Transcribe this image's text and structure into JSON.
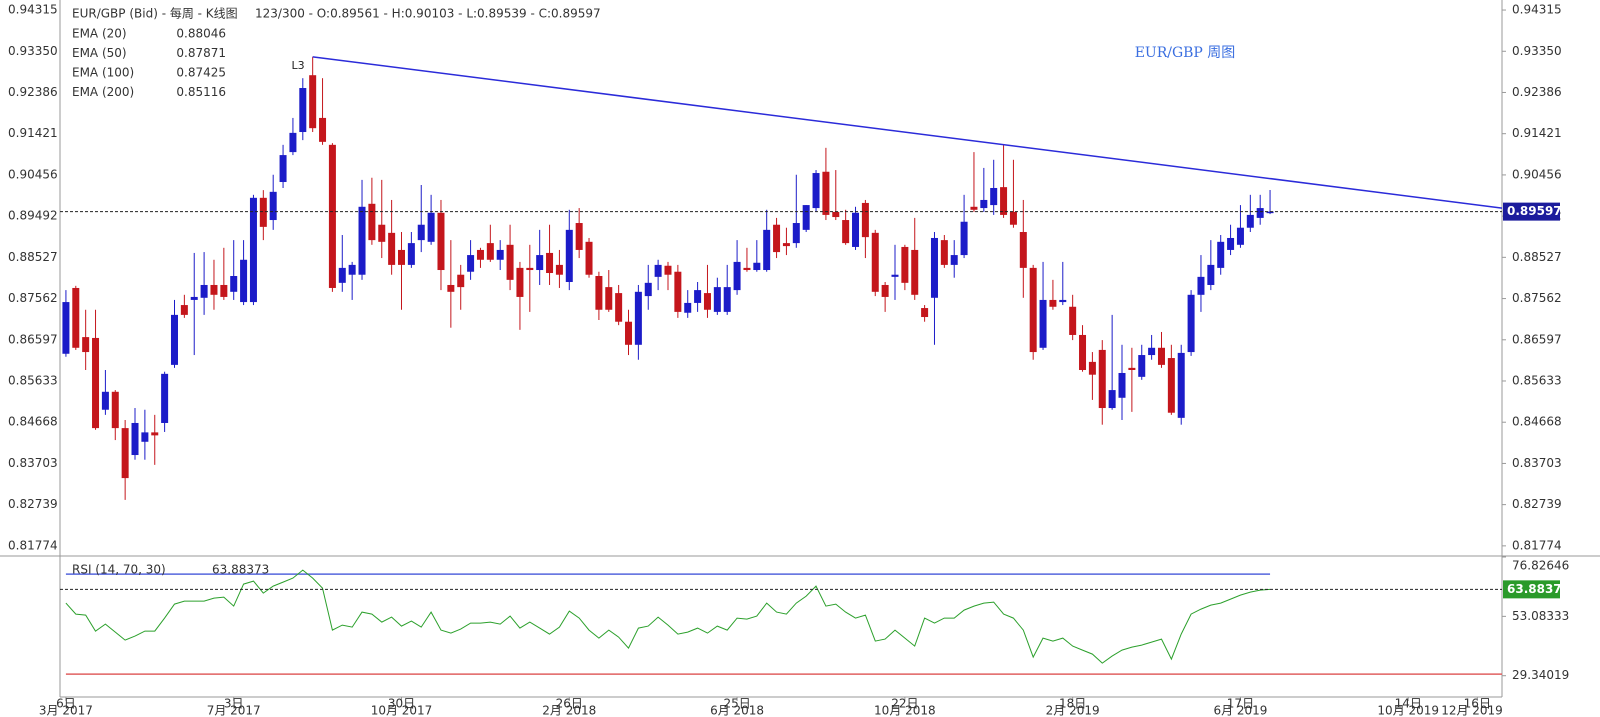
{
  "chart_data": [
    {
      "type": "candlestick",
      "title": "EUR/GBP (Bid) - 每周 - K线图",
      "status": "123/300 - O:0.89561 - H:0.90103 - L:0.89539 - C:0.89597",
      "annotation": "EUR/GBP 周图",
      "annotation_color": "#3b6fe0",
      "indicators": [
        {
          "name": "EMA (20)",
          "value": 0.88046
        },
        {
          "name": "EMA (50)",
          "value": 0.87871
        },
        {
          "name": "EMA (100)",
          "value": 0.87425
        },
        {
          "name": "EMA (200)",
          "value": 0.85116
        }
      ],
      "up_color": "#1c1cc8",
      "down_color": "#c4161c",
      "ylim": [
        0.8156,
        0.9455
      ],
      "yticks": [
        0.94315,
        {
          "value": 0.9335,
          "label": "0.93350"
        },
        0.92386,
        0.91421,
        0.90456,
        0.89492,
        0.88527,
        0.87562,
        0.86597,
        0.85633,
        0.84668,
        0.83703,
        0.82739,
        0.81774
      ],
      "xlim": [
        -0.6,
        145.5
      ],
      "xticks": [
        {
          "value": 0,
          "label": "6日",
          "period": "3月 2017"
        },
        {
          "value": 17,
          "label": "3日",
          "period": "7月 2017"
        },
        {
          "value": 34,
          "label": "30日",
          "period": "10月 2017"
        },
        {
          "value": 51,
          "label": "26日",
          "period": "2月 2018"
        },
        {
          "value": 68,
          "label": "25日",
          "period": "6月 2018"
        },
        {
          "value": 85,
          "label": "22日",
          "period": "10月 2018"
        },
        {
          "value": 102,
          "label": "18日",
          "period": "2月 2019"
        },
        {
          "value": 119,
          "label": "17日",
          "period": "6月 2019"
        },
        {
          "value": 136,
          "label": "14日",
          "period": "10月 2019"
        },
        {
          "value": 143,
          "label": "16日",
          "period": "12月 2019"
        }
      ],
      "trendline": {
        "label": "L3",
        "color": "#2b2bd9",
        "points": [
          [
            25,
            0.9322
          ],
          [
            145.5,
            0.8968
          ]
        ]
      },
      "ohlc": [
        [
          0.8627,
          0.8776,
          0.862,
          0.8748
        ],
        [
          0.8781,
          0.8786,
          0.8636,
          0.8641
        ],
        [
          0.8666,
          0.873,
          0.8589,
          0.8631
        ],
        [
          0.8664,
          0.873,
          0.8449,
          0.8453
        ],
        [
          0.8496,
          0.8589,
          0.8484,
          0.8538
        ],
        [
          0.8538,
          0.8542,
          0.8425,
          0.8453
        ],
        [
          0.8453,
          0.8472,
          0.8285,
          0.8336
        ],
        [
          0.839,
          0.85,
          0.8379,
          0.8465
        ],
        [
          0.8421,
          0.8496,
          0.8379,
          0.8443
        ],
        [
          0.8443,
          0.8484,
          0.8367,
          0.8436
        ],
        [
          0.8465,
          0.8585,
          0.8444,
          0.858
        ],
        [
          0.8601,
          0.8753,
          0.8594,
          0.8718
        ],
        [
          0.8741,
          0.8765,
          0.8711,
          0.8718
        ],
        [
          0.8753,
          0.8863,
          0.8624,
          0.876
        ],
        [
          0.8758,
          0.8865,
          0.8718,
          0.8788
        ],
        [
          0.8788,
          0.8847,
          0.873,
          0.8765
        ],
        [
          0.8788,
          0.8875,
          0.8753,
          0.876
        ],
        [
          0.8772,
          0.8893,
          0.8753,
          0.8809
        ],
        [
          0.8748,
          0.8893,
          0.8741,
          0.8847
        ],
        [
          0.8748,
          0.8999,
          0.8741,
          0.8992
        ],
        [
          0.8992,
          0.901,
          0.8893,
          0.8924
        ],
        [
          0.894,
          0.9046,
          0.8917,
          0.9006
        ],
        [
          0.9029,
          0.9116,
          0.9015,
          0.9092
        ],
        [
          0.9099,
          0.9179,
          0.9092,
          0.9144
        ],
        [
          0.9146,
          0.9272,
          0.9127,
          0.9249
        ],
        [
          0.9279,
          0.9322,
          0.9146,
          0.9155
        ],
        [
          0.9179,
          0.9272,
          0.9116,
          0.9123
        ],
        [
          0.9116,
          0.912,
          0.8772,
          0.8781
        ],
        [
          0.8793,
          0.8905,
          0.8772,
          0.8828
        ],
        [
          0.8812,
          0.8842,
          0.8753,
          0.8835
        ],
        [
          0.8812,
          0.9034,
          0.88,
          0.8971
        ],
        [
          0.8978,
          0.9039,
          0.8882,
          0.8893
        ],
        [
          0.8929,
          0.9034,
          0.8851,
          0.8889
        ],
        [
          0.891,
          0.8987,
          0.8812,
          0.8835
        ],
        [
          0.887,
          0.8912,
          0.873,
          0.8835
        ],
        [
          0.8835,
          0.8912,
          0.8828,
          0.8886
        ],
        [
          0.8893,
          0.9022,
          0.8865,
          0.8929
        ],
        [
          0.8889,
          0.8999,
          0.8882,
          0.8957
        ],
        [
          0.8957,
          0.8987,
          0.8776,
          0.8823
        ],
        [
          0.8788,
          0.8893,
          0.8688,
          0.8772
        ],
        [
          0.8812,
          0.8835,
          0.873,
          0.8783
        ],
        [
          0.8819,
          0.8893,
          0.88,
          0.8858
        ],
        [
          0.887,
          0.8875,
          0.8828,
          0.8847
        ],
        [
          0.8886,
          0.8929,
          0.8842,
          0.8847
        ],
        [
          0.8847,
          0.8893,
          0.8823,
          0.887
        ],
        [
          0.8882,
          0.8929,
          0.8776,
          0.88
        ],
        [
          0.8828,
          0.8842,
          0.8683,
          0.876
        ],
        [
          0.8828,
          0.8882,
          0.8725,
          0.8823
        ],
        [
          0.8823,
          0.8917,
          0.8788,
          0.8858
        ],
        [
          0.8863,
          0.8929,
          0.8788,
          0.8816
        ],
        [
          0.8835,
          0.887,
          0.8781,
          0.8812
        ],
        [
          0.8795,
          0.8964,
          0.8776,
          0.8917
        ],
        [
          0.8933,
          0.8968,
          0.8851,
          0.887
        ],
        [
          0.8889,
          0.8898,
          0.8805,
          0.8812
        ],
        [
          0.8809,
          0.8819,
          0.8706,
          0.873
        ],
        [
          0.8783,
          0.8823,
          0.8725,
          0.873
        ],
        [
          0.8769,
          0.8788,
          0.8694,
          0.8702
        ],
        [
          0.8702,
          0.873,
          0.8624,
          0.8648
        ],
        [
          0.8648,
          0.8788,
          0.8613,
          0.8772
        ],
        [
          0.8762,
          0.8835,
          0.873,
          0.8793
        ],
        [
          0.8807,
          0.8847,
          0.8776,
          0.8835
        ],
        [
          0.8833,
          0.8842,
          0.8776,
          0.8812
        ],
        [
          0.8819,
          0.8835,
          0.8711,
          0.8725
        ],
        [
          0.8723,
          0.8776,
          0.8711,
          0.8746
        ],
        [
          0.8746,
          0.8795,
          0.8725,
          0.8776
        ],
        [
          0.8769,
          0.8835,
          0.8711,
          0.873
        ],
        [
          0.8725,
          0.8805,
          0.8718,
          0.8783
        ],
        [
          0.8725,
          0.8835,
          0.8718,
          0.8783
        ],
        [
          0.8776,
          0.8893,
          0.8765,
          0.8842
        ],
        [
          0.8828,
          0.8875,
          0.8819,
          0.8823
        ],
        [
          0.8823,
          0.8893,
          0.8819,
          0.884
        ],
        [
          0.8823,
          0.8964,
          0.8819,
          0.8917
        ],
        [
          0.8929,
          0.8945,
          0.8851,
          0.8865
        ],
        [
          0.8886,
          0.8922,
          0.8858,
          0.8879
        ],
        [
          0.8886,
          0.9046,
          0.8875,
          0.8933
        ],
        [
          0.8917,
          0.8975,
          0.8912,
          0.8975
        ],
        [
          0.8968,
          0.9057,
          0.8959,
          0.905
        ],
        [
          0.9053,
          0.9109,
          0.894,
          0.8952
        ],
        [
          0.8959,
          0.9057,
          0.894,
          0.8947
        ],
        [
          0.894,
          0.8964,
          0.8882,
          0.8886
        ],
        [
          0.8877,
          0.8971,
          0.887,
          0.8957
        ],
        [
          0.898,
          0.8987,
          0.8851,
          0.89
        ],
        [
          0.891,
          0.8917,
          0.8762,
          0.8772
        ],
        [
          0.8788,
          0.8795,
          0.8725,
          0.876
        ],
        [
          0.8807,
          0.8882,
          0.8753,
          0.8812
        ],
        [
          0.8877,
          0.8882,
          0.8776,
          0.8793
        ],
        [
          0.887,
          0.8945,
          0.8753,
          0.8765
        ],
        [
          0.8734,
          0.8741,
          0.8702,
          0.8713
        ],
        [
          0.8758,
          0.8912,
          0.8648,
          0.8898
        ],
        [
          0.8893,
          0.8905,
          0.8828,
          0.8835
        ],
        [
          0.8835,
          0.8893,
          0.8805,
          0.8858
        ],
        [
          0.8858,
          0.8999,
          0.8851,
          0.8936
        ],
        [
          0.8971,
          0.9099,
          0.8959,
          0.8964
        ],
        [
          0.8968,
          0.9062,
          0.8959,
          0.8987
        ],
        [
          0.8975,
          0.9081,
          0.8952,
          0.9015
        ],
        [
          0.9017,
          0.9116,
          0.8945,
          0.8952
        ],
        [
          0.8959,
          0.9081,
          0.8922,
          0.8929
        ],
        [
          0.8912,
          0.8987,
          0.8758,
          0.8828
        ],
        [
          0.8828,
          0.8835,
          0.8613,
          0.8631
        ],
        [
          0.8641,
          0.8842,
          0.8636,
          0.8753
        ],
        [
          0.8753,
          0.88,
          0.873,
          0.8737
        ],
        [
          0.8748,
          0.8842,
          0.8741,
          0.8753
        ],
        [
          0.8737,
          0.8765,
          0.8659,
          0.8671
        ],
        [
          0.8671,
          0.8694,
          0.8585,
          0.8589
        ],
        [
          0.8608,
          0.8631,
          0.8519,
          0.8578
        ],
        [
          0.8636,
          0.8659,
          0.8461,
          0.85
        ],
        [
          0.85,
          0.8718,
          0.8496,
          0.8542
        ],
        [
          0.8524,
          0.8648,
          0.8472,
          0.8582
        ],
        [
          0.8594,
          0.8641,
          0.8491,
          0.8589
        ],
        [
          0.8573,
          0.8648,
          0.8566,
          0.8624
        ],
        [
          0.8624,
          0.8671,
          0.8613,
          0.8641
        ],
        [
          0.8641,
          0.8678,
          0.8594,
          0.8601
        ],
        [
          0.8617,
          0.8648,
          0.8484,
          0.8489
        ],
        [
          0.8477,
          0.8648,
          0.8461,
          0.8629
        ],
        [
          0.8631,
          0.8776,
          0.8622,
          0.8765
        ],
        [
          0.8765,
          0.8858,
          0.8725,
          0.8807
        ],
        [
          0.8788,
          0.8893,
          0.8776,
          0.8835
        ],
        [
          0.8828,
          0.8905,
          0.8812,
          0.8889
        ],
        [
          0.887,
          0.8929,
          0.8858,
          0.8898
        ],
        [
          0.8882,
          0.8975,
          0.8875,
          0.8922
        ],
        [
          0.8922,
          0.8999,
          0.8912,
          0.8952
        ],
        [
          0.8945,
          0.8999,
          0.8929,
          0.8968
        ],
        [
          0.89561,
          0.90103,
          0.89539,
          0.89597
        ]
      ],
      "last_color": "#1c1c9c"
    },
    {
      "type": "line",
      "name": "RSI (14, 70, 30)",
      "color": "#2ca02c",
      "ylim": [
        20.83,
        76.82646
      ],
      "yticks": [
        76.82646,
        53.08333,
        29.34019
      ],
      "xlim": [
        -0.6,
        145.5
      ],
      "levels": [
        {
          "value": 70,
          "color": "#5566dd"
        },
        {
          "value": 30,
          "color": "#e06060"
        }
      ],
      "values": [
        58.4,
        54,
        53.6,
        47.2,
        50,
        46.8,
        43.6,
        45.2,
        47.2,
        47.2,
        52.4,
        58,
        59.2,
        59.2,
        59.2,
        60.4,
        60.8,
        57.2,
        66,
        67.2,
        62.4,
        65.2,
        66.8,
        68.4,
        71.6,
        68.4,
        64.4,
        47.6,
        49.6,
        48.8,
        54.8,
        54,
        50.8,
        52.8,
        49.2,
        51.2,
        48.8,
        54.8,
        47.6,
        46.4,
        48,
        50.4,
        50.4,
        50.8,
        50,
        53.2,
        48.4,
        50.8,
        48.4,
        46,
        48.8,
        55.2,
        52.4,
        47.6,
        44.4,
        47.6,
        44.8,
        40.4,
        48.4,
        49.2,
        52.8,
        49.6,
        46,
        46.8,
        48.4,
        46.4,
        49.2,
        47.6,
        52.4,
        52,
        53.2,
        58.4,
        54.8,
        54,
        58.4,
        61.2,
        65.2,
        57.2,
        58,
        54.8,
        52.4,
        53.6,
        43.2,
        44,
        47.6,
        44.4,
        41.2,
        52.4,
        50.4,
        52.4,
        52.4,
        55.6,
        57.2,
        58.4,
        58.8,
        54,
        52.4,
        47.6,
        36.8,
        44.4,
        43.2,
        44.4,
        41.2,
        39.6,
        38,
        34.4,
        37.2,
        39.6,
        40.8,
        41.6,
        42.8,
        44,
        36,
        46,
        54,
        56,
        57.6,
        58.4,
        60,
        61.6,
        62.8,
        63.6,
        63.88373
      ],
      "last_color": "#2a9a2a"
    }
  ]
}
